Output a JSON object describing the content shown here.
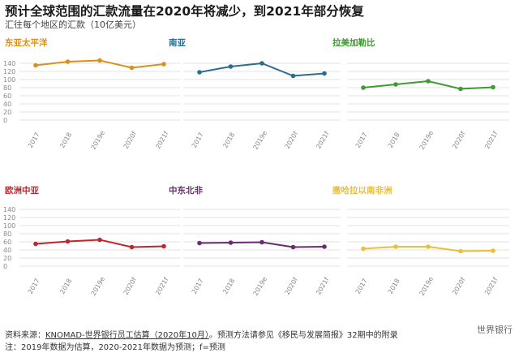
{
  "header": {
    "title": "预计全球范围的汇款流量在2020年将减少，到2021年部分恢复",
    "subtitle": "汇往每个地区的汇款（10亿美元）"
  },
  "footer": {
    "source_prefix": "资料来源：",
    "source_link": "KNOMAD-世界银行员工估算（2020年10月）",
    "source_rest": "。预测方法请参见《移民与发展简报》32期中的附录",
    "note": "注：2019年数据为估算，2020-2021年数据为预测；f=预测"
  },
  "logo": {
    "text": "世界银行"
  },
  "chart_data": [
    {
      "type": "line",
      "title": "东亚太平洋",
      "color": "#d9911e",
      "categories": [
        "2017",
        "2018",
        "2019e",
        "2020f",
        "2021f"
      ],
      "values": [
        135,
        144,
        147,
        129,
        138
      ],
      "ylim": [
        0,
        140
      ],
      "yticks": [
        0,
        20,
        40,
        60,
        80,
        100,
        120,
        140
      ],
      "grid": true
    },
    {
      "type": "line",
      "title": "南亚",
      "color": "#2b6d8c",
      "categories": [
        "2017",
        "2018",
        "2019e",
        "2020f",
        "2021f"
      ],
      "values": [
        118,
        132,
        140,
        109,
        115
      ],
      "ylim": [
        0,
        140
      ],
      "yticks": [
        0,
        20,
        40,
        60,
        80,
        100,
        120,
        140
      ],
      "grid": true
    },
    {
      "type": "line",
      "title": "拉美加勒比",
      "color": "#3f9a31",
      "categories": [
        "2017",
        "2018",
        "2019e",
        "2020f",
        "2021f"
      ],
      "values": [
        80,
        88,
        96,
        77,
        81
      ],
      "ylim": [
        0,
        140
      ],
      "yticks": [
        0,
        20,
        40,
        60,
        80,
        100,
        120,
        140
      ],
      "grid": true
    },
    {
      "type": "line",
      "title": "欧洲中亚",
      "color": "#c0272d",
      "categories": [
        "2017",
        "2018",
        "2019e",
        "2020f",
        "2021f"
      ],
      "values": [
        55,
        61,
        65,
        47,
        49
      ],
      "ylim": [
        0,
        140
      ],
      "yticks": [
        0,
        20,
        40,
        60,
        80,
        100,
        120,
        140
      ],
      "grid": true
    },
    {
      "type": "line",
      "title": "中东北非",
      "color": "#6a2c70",
      "categories": [
        "2017",
        "2018",
        "2019e",
        "2020f",
        "2021f"
      ],
      "values": [
        57,
        58,
        59,
        47,
        48
      ],
      "ylim": [
        0,
        140
      ],
      "yticks": [
        0,
        20,
        40,
        60,
        80,
        100,
        120,
        140
      ],
      "grid": true
    },
    {
      "type": "line",
      "title": "撒哈拉以南非洲",
      "color": "#e8c03a",
      "categories": [
        "2017",
        "2018",
        "2019e",
        "2020f",
        "2021f"
      ],
      "values": [
        43,
        48,
        48,
        37,
        38
      ],
      "ylim": [
        0,
        140
      ],
      "yticks": [
        0,
        20,
        40,
        60,
        80,
        100,
        120,
        140
      ],
      "grid": true
    }
  ]
}
